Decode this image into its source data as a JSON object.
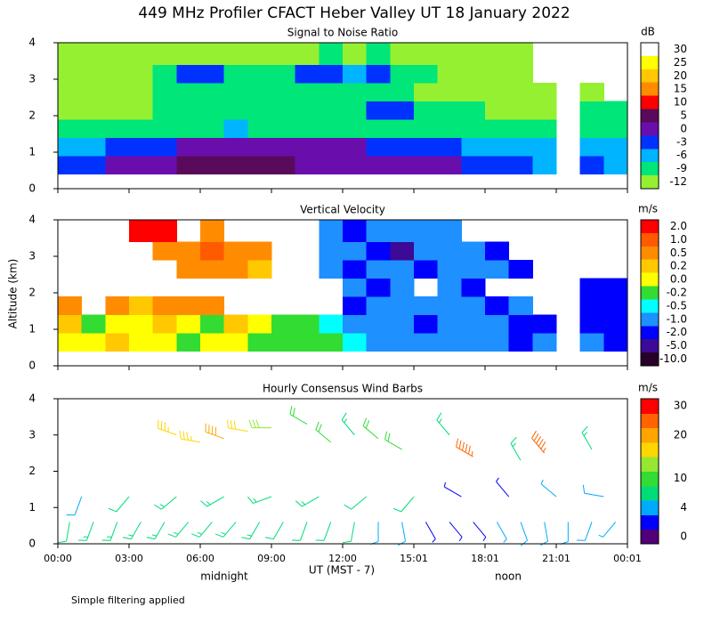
{
  "title": "449 MHz Profiler CFACT Heber Valley UT 18 January 2022",
  "y_label": "Altitude (km)",
  "x_label": "UT  (MST - 7)",
  "annotations": [
    "midnight",
    "noon"
  ],
  "footnote": "Simple filtering applied",
  "chart_data": [
    {
      "type": "heatmap",
      "title": "Signal to Noise Ratio",
      "xlim": [
        0,
        24
      ],
      "ylim": [
        0,
        4
      ],
      "yticks": [
        0,
        1,
        2,
        3,
        4
      ],
      "x_bins": [
        0,
        1,
        2,
        3,
        4,
        5,
        6,
        7,
        8,
        9,
        10,
        11,
        12,
        13,
        14,
        15,
        16,
        17,
        18,
        19,
        20,
        21,
        22,
        23,
        24
      ],
      "y_bins": [
        0.4,
        0.9,
        1.4,
        1.9,
        2.4,
        2.9,
        3.4,
        4.0
      ],
      "z": [
        [
          -3,
          -3,
          0,
          0,
          3,
          5,
          8,
          8,
          5,
          5,
          3,
          3,
          3,
          0,
          0,
          0,
          0,
          -3,
          -3,
          -3,
          -6,
          null,
          -3,
          -6
        ],
        [
          -6,
          -6,
          -3,
          -3,
          -3,
          0,
          3,
          3,
          3,
          0,
          0,
          0,
          0,
          -3,
          -3,
          -3,
          -3,
          -6,
          -6,
          -6,
          -6,
          null,
          -6,
          -6
        ],
        [
          -9,
          -9,
          -9,
          -9,
          -9,
          -9,
          -9,
          -6,
          -9,
          -9,
          -9,
          -9,
          -9,
          -9,
          -9,
          -9,
          -9,
          -9,
          -9,
          -9,
          -9,
          null,
          -9,
          -9
        ],
        [
          -12,
          -12,
          -12,
          -12,
          -9,
          -9,
          -9,
          -9,
          -9,
          -9,
          -9,
          -9,
          -9,
          -3,
          -3,
          -9,
          -9,
          -9,
          -12,
          -12,
          -12,
          null,
          -9,
          -9
        ],
        [
          -12,
          -12,
          -12,
          -12,
          -9,
          -9,
          -9,
          -9,
          -9,
          -9,
          -9,
          -9,
          -9,
          -9,
          -9,
          -12,
          -12,
          -12,
          -12,
          -12,
          -12,
          null,
          -12,
          null
        ],
        [
          -12,
          -12,
          -12,
          -12,
          -9,
          -3,
          -3,
          -9,
          -9,
          -9,
          -3,
          -3,
          -6,
          -3,
          -9,
          -9,
          -12,
          -12,
          -12,
          -12,
          null,
          null,
          null,
          null
        ],
        [
          -12,
          -12,
          -12,
          -12,
          -12,
          -12,
          -12,
          -12,
          -12,
          -12,
          -12,
          -9,
          -12,
          -9,
          -12,
          -12,
          -12,
          -12,
          -12,
          -12,
          null,
          null,
          null,
          null
        ]
      ],
      "colorbar": {
        "title": "dB",
        "ticks": [
          30,
          25,
          20,
          15,
          10,
          5,
          0,
          -3,
          -6,
          -9,
          -12
        ],
        "colors": [
          "#ffffff",
          "#ffff00",
          "#ffc800",
          "#ff8c00",
          "#ff0000",
          "#5a0a5a",
          "#6a0dad",
          "#0032ff",
          "#00b4ff",
          "#00e678",
          "#96f032"
        ]
      }
    },
    {
      "type": "heatmap",
      "title": "Vertical Velocity",
      "xlim": [
        0,
        24
      ],
      "ylim": [
        0,
        4
      ],
      "yticks": [
        0,
        1,
        2,
        3,
        4
      ],
      "x_bins": [
        0,
        1,
        2,
        3,
        4,
        5,
        6,
        7,
        8,
        9,
        10,
        11,
        12,
        13,
        14,
        15,
        16,
        17,
        18,
        19,
        20,
        21,
        22,
        23,
        24
      ],
      "y_bins": [
        0.4,
        0.9,
        1.4,
        1.9,
        2.4,
        2.9,
        3.4,
        4.0
      ],
      "z": [
        [
          0,
          0,
          0.2,
          0,
          0,
          -0.2,
          0,
          0,
          -0.2,
          -0.2,
          -0.2,
          -0.2,
          -0.5,
          -1,
          -1,
          -1,
          -1,
          -1,
          -1,
          -2,
          -1,
          null,
          -1,
          -2
        ],
        [
          0.2,
          -0.2,
          0,
          0,
          0.2,
          0,
          -0.2,
          0.2,
          0,
          -0.2,
          -0.2,
          -0.5,
          -1,
          -1,
          -1,
          -2,
          -1,
          -1,
          -1,
          -2,
          -2,
          null,
          -2,
          -2
        ],
        [
          0.5,
          null,
          0.5,
          0.2,
          0.5,
          0.5,
          0.5,
          null,
          null,
          null,
          null,
          null,
          -2,
          -1,
          -1,
          -1,
          -1,
          -1,
          -2,
          -1,
          null,
          null,
          -2,
          -2
        ],
        [
          null,
          null,
          null,
          null,
          null,
          null,
          null,
          null,
          null,
          null,
          null,
          null,
          -1,
          -2,
          -1,
          null,
          -1,
          -2,
          null,
          null,
          null,
          null,
          -2,
          -2
        ],
        [
          null,
          null,
          null,
          null,
          null,
          0.5,
          0.5,
          0.5,
          0.2,
          null,
          null,
          -1,
          -2,
          -1,
          -1,
          -2,
          -1,
          -1,
          -1,
          -2,
          null,
          null,
          null,
          null
        ],
        [
          null,
          null,
          null,
          null,
          0.5,
          0.5,
          1,
          0.5,
          0.5,
          null,
          null,
          -1,
          -1,
          -2,
          -5,
          -1,
          -1,
          -1,
          -2,
          null,
          null,
          null,
          null,
          null
        ],
        [
          null,
          null,
          null,
          2,
          2,
          null,
          0.5,
          null,
          null,
          null,
          null,
          -1,
          -2,
          -1,
          -1,
          -1,
          -1,
          null,
          null,
          null,
          null,
          null,
          null,
          null
        ]
      ],
      "colorbar": {
        "title": "m/s",
        "ticks": [
          {
            "value": 2,
            "label": "2.0"
          },
          {
            "value": 1,
            "label": "1.0"
          },
          0.5,
          0.2,
          {
            "value": 0,
            "label": "0.0"
          },
          -0.2,
          -0.5,
          {
            "value": -1,
            "label": "-1.0"
          },
          {
            "value": -2,
            "label": "-2.0"
          },
          {
            "value": -5,
            "label": "-5.0"
          },
          {
            "value": -10,
            "label": "-10.0"
          }
        ],
        "colors": [
          "#ff0000",
          "#ff5a00",
          "#ff8c00",
          "#ffc800",
          "#ffff00",
          "#32dc32",
          "#00ffff",
          "#1e90ff",
          "#0000ff",
          "#3c0a96",
          "#280028"
        ]
      }
    },
    {
      "type": "barbs",
      "title": "Hourly Consensus Wind Barbs",
      "xlim": [
        0,
        24
      ],
      "ylim": [
        0,
        4
      ],
      "yticks": [
        0,
        1,
        2,
        3,
        4
      ],
      "xticks": [
        {
          "value": 0,
          "label": "00:00"
        },
        {
          "value": 3,
          "label": "03:00"
        },
        {
          "value": 6,
          "label": "06:00"
        },
        {
          "value": 9,
          "label": "09:00"
        },
        {
          "value": 12,
          "label": "12:00"
        },
        {
          "value": 15,
          "label": "15:01"
        },
        {
          "value": 18,
          "label": "18:01"
        },
        {
          "value": 21,
          "label": "21:01"
        },
        {
          "value": 24,
          "label": "00:01"
        }
      ],
      "x": [
        0.5,
        1.5,
        2.5,
        3.5,
        4.5,
        5.5,
        6.5,
        7.5,
        8.5,
        9.5,
        10.5,
        11.5,
        12.5,
        13.5,
        14.5,
        15.5,
        16.5,
        17.5,
        18.5,
        19.5,
        20.5,
        21.5,
        22.5,
        23.5,
        1,
        3,
        5,
        7,
        9,
        11,
        13,
        15,
        17,
        19,
        21,
        23,
        5,
        6,
        7,
        8,
        9,
        10.5,
        11.5,
        12.5,
        13.5,
        14.5,
        16.5,
        17.5,
        19.5,
        20.5,
        22.5
      ],
      "y": [
        0.6,
        0.6,
        0.6,
        0.6,
        0.6,
        0.6,
        0.6,
        0.6,
        0.6,
        0.6,
        0.6,
        0.6,
        0.6,
        0.6,
        0.6,
        0.6,
        0.6,
        0.6,
        0.6,
        0.6,
        0.6,
        0.6,
        0.6,
        0.6,
        1.3,
        1.3,
        1.3,
        1.3,
        1.3,
        1.3,
        1.3,
        1.3,
        1.3,
        1.3,
        1.3,
        1.3,
        3.0,
        2.8,
        2.9,
        3.1,
        3.2,
        3.3,
        2.8,
        3.0,
        2.9,
        2.6,
        3.0,
        2.4,
        2.3,
        2.5,
        2.6
      ],
      "speed": [
        7,
        8,
        8,
        8,
        9,
        9,
        8,
        8,
        8,
        7,
        7,
        7,
        7,
        6,
        5,
        3,
        3,
        3,
        4,
        5,
        5,
        6,
        5,
        4,
        6,
        7,
        8,
        9,
        9,
        8,
        7,
        7,
        3,
        3,
        4,
        5,
        18,
        19,
        20,
        17,
        15,
        10,
        10,
        9,
        10,
        12,
        9,
        28,
        9,
        28,
        9
      ],
      "direction": [
        190,
        200,
        200,
        210,
        210,
        220,
        220,
        220,
        210,
        210,
        200,
        200,
        190,
        180,
        170,
        150,
        140,
        140,
        150,
        160,
        170,
        180,
        200,
        220,
        200,
        220,
        230,
        240,
        250,
        240,
        230,
        220,
        300,
        320,
        310,
        280,
        290,
        280,
        290,
        280,
        270,
        300,
        310,
        320,
        310,
        300,
        320,
        300,
        330,
        320,
        330
      ],
      "colorbar": {
        "title": "m/s",
        "levels": [
          0,
          2,
          4,
          7,
          10,
          13,
          16,
          20,
          25,
          30,
          35
        ],
        "colors": [
          "#500078",
          "#0000ff",
          "#00aaff",
          "#00dc78",
          "#32dc32",
          "#96e632",
          "#ffd700",
          "#ffa500",
          "#ff6400",
          "#ff0000"
        ],
        "ticks": [
          30,
          20,
          10,
          4,
          0
        ]
      }
    }
  ]
}
